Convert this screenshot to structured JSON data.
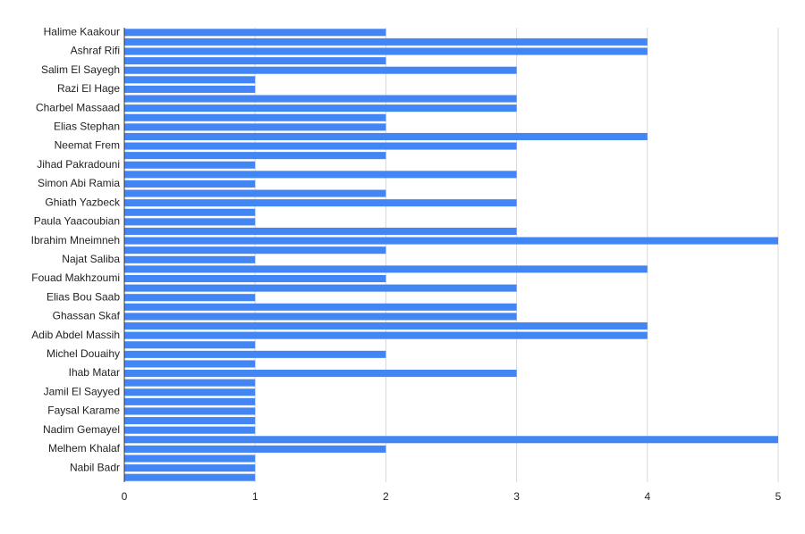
{
  "chart_data": {
    "type": "bar",
    "orientation": "horizontal",
    "categories": [
      "Halime Kaakour",
      null,
      "Ashraf Rifi",
      null,
      "Salim El Sayegh",
      null,
      "Razi El Hage",
      null,
      "Charbel Massaad",
      null,
      "Elias Stephan",
      null,
      "Neemat Frem",
      null,
      "Jihad Pakradouni",
      null,
      "Simon Abi Ramia",
      null,
      "Ghiath Yazbeck",
      null,
      "Paula Yaacoubian",
      null,
      "Ibrahim Mneimneh",
      null,
      "Najat Saliba",
      null,
      "Fouad Makhzoumi",
      null,
      "Elias Bou Saab",
      null,
      "Ghassan Skaf",
      null,
      "Adib Abdel Massih",
      null,
      "Michel Douaihy",
      null,
      "Ihab Matar",
      null,
      "Jamil El Sayyed",
      null,
      "Faysal Karame",
      null,
      "Nadim Gemayel",
      null,
      "Melhem Khalaf",
      null,
      "Nabil Badr",
      null
    ],
    "values": [
      2,
      4,
      4,
      2,
      3,
      1,
      1,
      3,
      3,
      2,
      2,
      4,
      3,
      2,
      1,
      3,
      1,
      2,
      3,
      1,
      1,
      3,
      5,
      2,
      1,
      4,
      2,
      3,
      1,
      3,
      3,
      4,
      4,
      1,
      2,
      1,
      3,
      1,
      1,
      1,
      1,
      1,
      1,
      5,
      2,
      1,
      1,
      1
    ],
    "color": "#4285f4",
    "xlim": [
      0,
      5
    ],
    "xticks": [
      0,
      1,
      2,
      3,
      4,
      5
    ],
    "grid": true
  }
}
